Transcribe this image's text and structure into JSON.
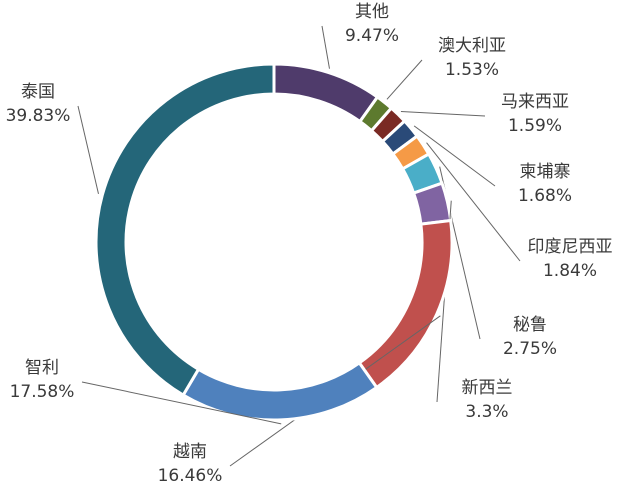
{
  "chart_data": {
    "type": "donut",
    "categories": [
      "其他",
      "澳大利亚",
      "马来西亚",
      "柬埔寨",
      "印度尼西亚",
      "秘鲁",
      "新西兰",
      "越南",
      "智利",
      "泰国"
    ],
    "values": [
      9.47,
      1.53,
      1.59,
      1.68,
      1.84,
      2.75,
      3.3,
      16.46,
      17.58,
      39.83
    ],
    "value_labels": [
      "9.47%",
      "1.53%",
      "1.59%",
      "1.68%",
      "1.84%",
      "2.75%",
      "3.3%",
      "16.46%",
      "17.58%",
      "39.83%"
    ],
    "colors": [
      "#4f3b6b",
      "#5d7a2e",
      "#7a2a24",
      "#2a4a78",
      "#f59a46",
      "#4aaec8",
      "#8064a2",
      "#c0504d",
      "#4f81bd",
      "#246679"
    ]
  }
}
